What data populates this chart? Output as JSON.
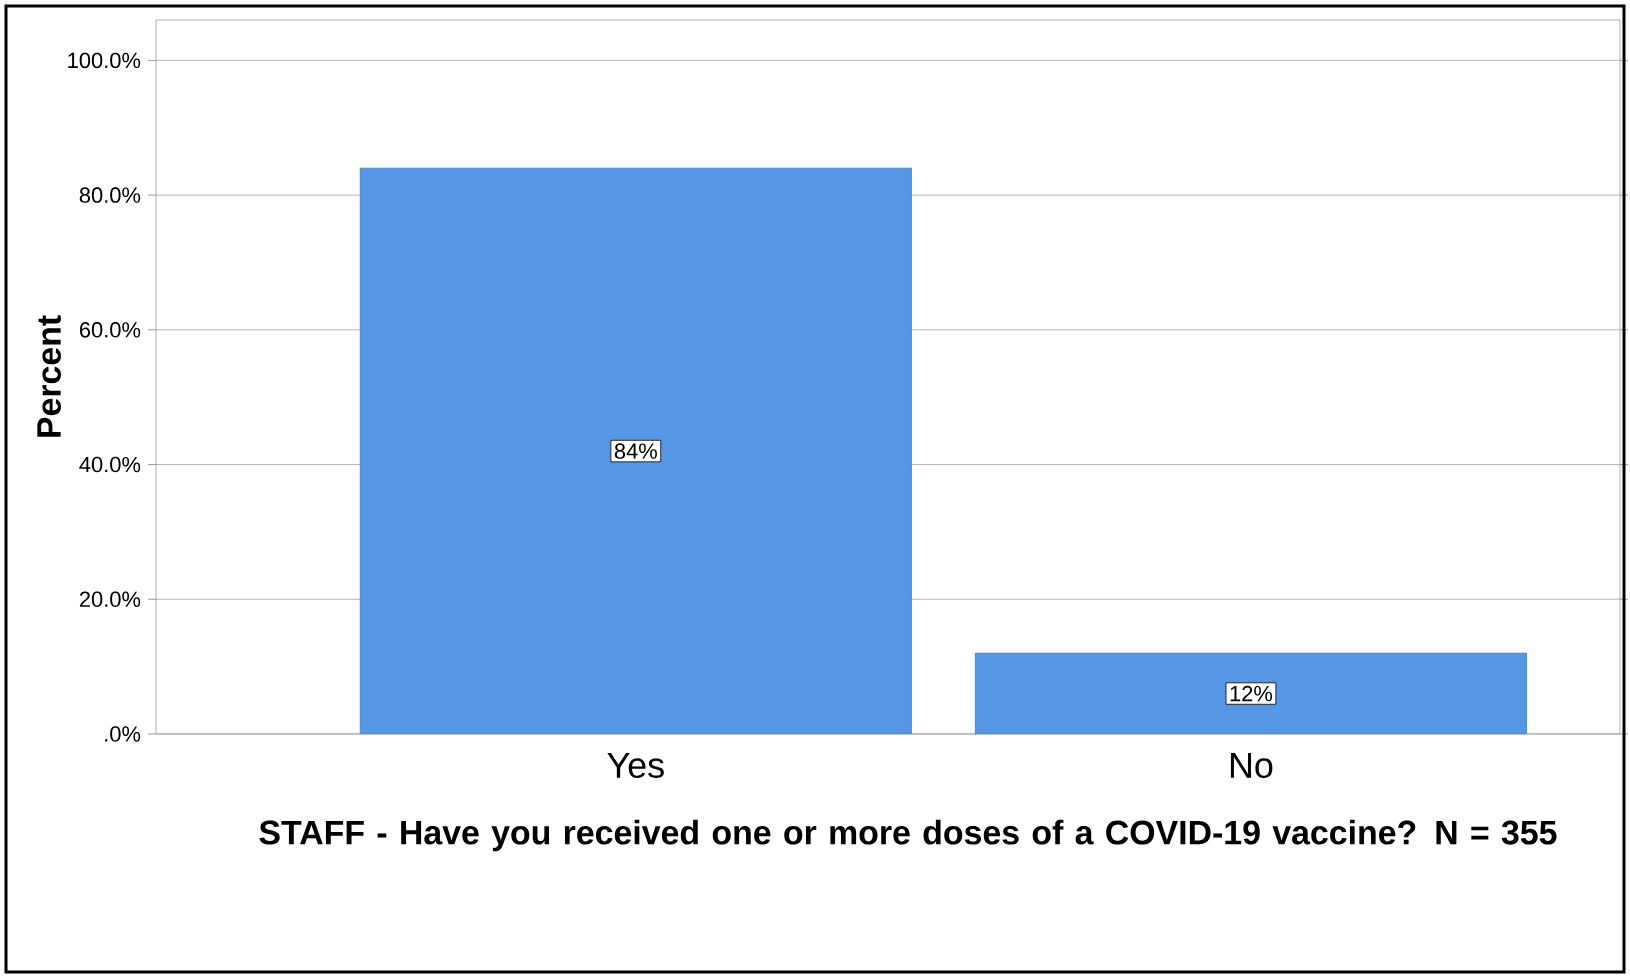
{
  "chart_data": {
    "type": "bar",
    "xlabel": "STAFF - Have you received one or more doses of a COVID-19 vaccine? N = 355",
    "ylabel": "Percent",
    "categories": [
      "Yes",
      "No"
    ],
    "values": [
      84,
      12
    ],
    "value_labels": [
      "84%",
      "12%"
    ],
    "color": "#5596e5",
    "ylim": [
      0,
      106
    ],
    "yticks": [
      {
        "value": 0,
        "label": ".0%"
      },
      {
        "value": 20,
        "label": "20.0%"
      },
      {
        "value": 40,
        "label": "40.0%"
      },
      {
        "value": 60,
        "label": "60.0%"
      },
      {
        "value": 80,
        "label": "80.0%"
      },
      {
        "value": 100,
        "label": "100.0%"
      }
    ],
    "grid": "y"
  }
}
